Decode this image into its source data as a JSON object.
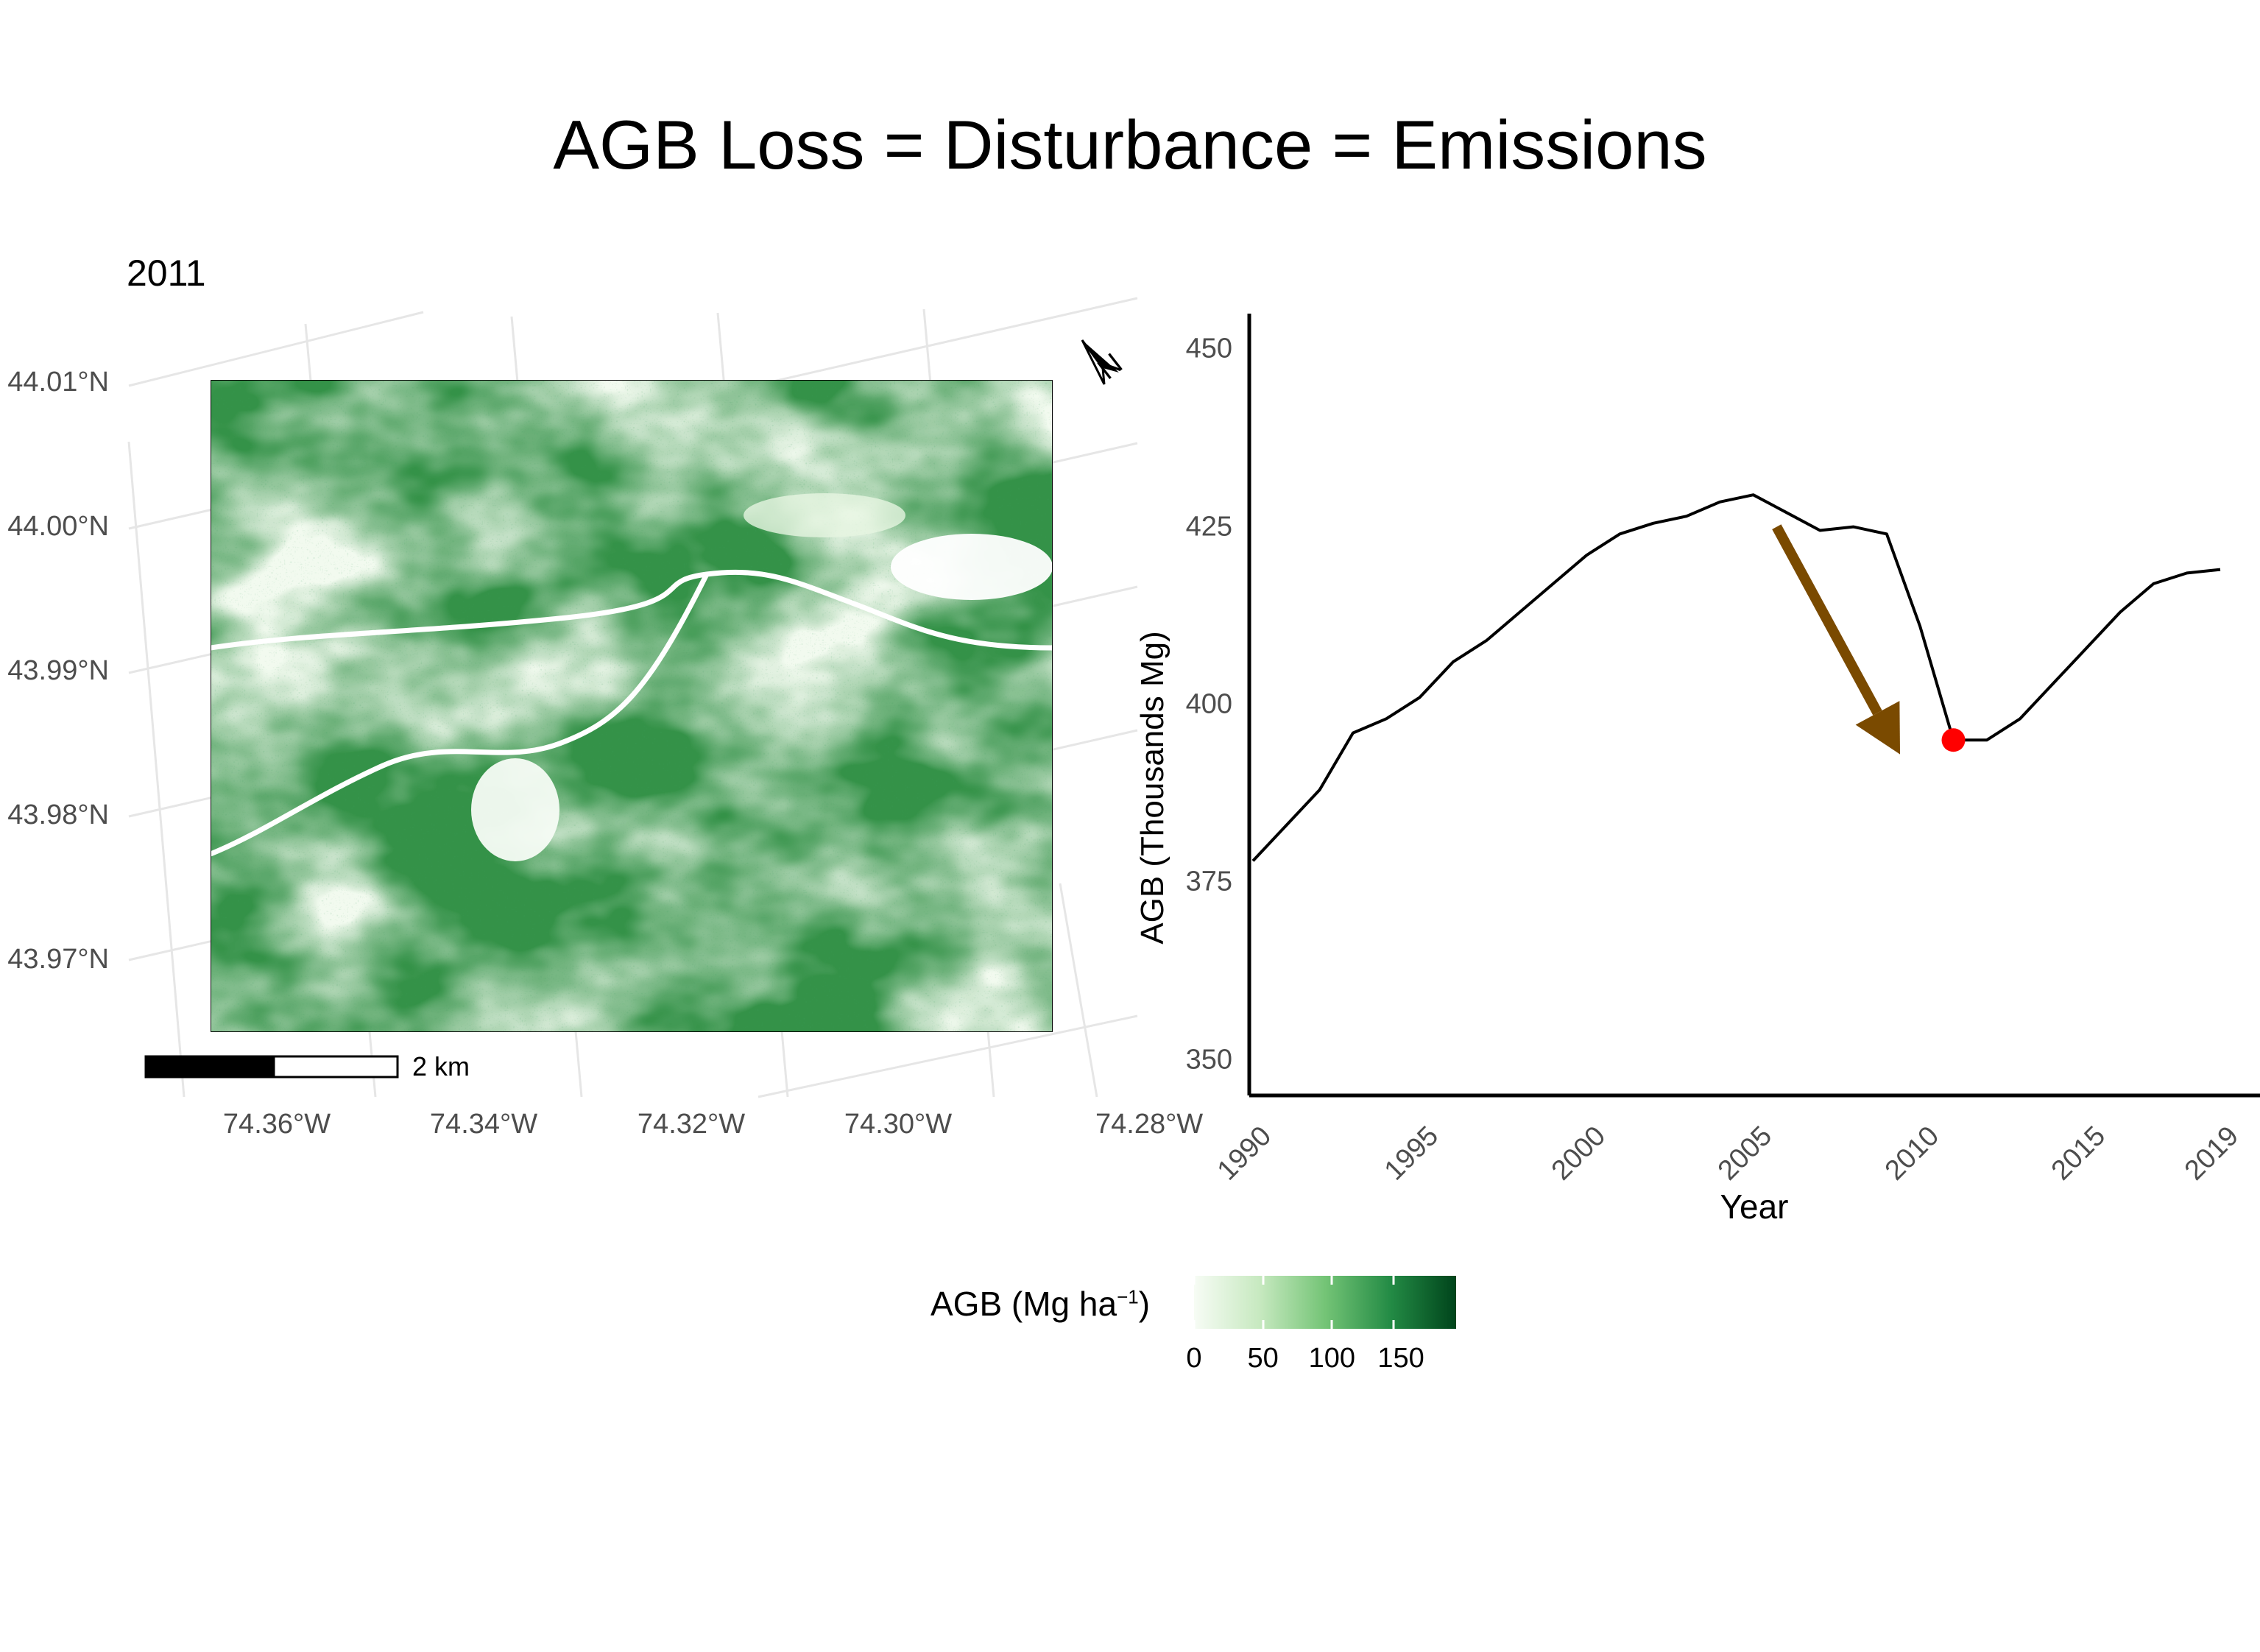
{
  "title": "AGB Loss = Disturbance = Emissions",
  "map": {
    "year_label": "2011",
    "lat_labels": [
      "44.01°N",
      "44.00°N",
      "43.99°N",
      "43.98°N",
      "43.97°N"
    ],
    "lon_labels": [
      "74.36°W",
      "74.34°W",
      "74.32°W",
      "74.30°W",
      "74.28°W"
    ],
    "scale_bar_label": "2 km",
    "north_arrow_letter": "N",
    "colors": {
      "low": "#f7fcf5",
      "mid": "#74c476",
      "high": "#00441b",
      "road": "#ffffff"
    }
  },
  "legend": {
    "title_main": "AGB (Mg ha",
    "title_sup": "−1",
    "title_close": ")",
    "ticks": [
      "0",
      "50",
      "100",
      "150"
    ],
    "range": [
      0,
      190
    ]
  },
  "chart_data": {
    "type": "line",
    "xlabel": "Year",
    "ylabel": "AGB (Thousands Mg)",
    "xlim": [
      1990,
      2019
    ],
    "ylim": [
      345,
      455
    ],
    "x_ticks": [
      "1990",
      "1995",
      "2000",
      "2005",
      "2010",
      "2015",
      "2019"
    ],
    "y_ticks": [
      "450",
      "425",
      "400",
      "375",
      "350"
    ],
    "series": [
      {
        "x": [
          1990,
          1991,
          1992,
          1993,
          1994,
          1995,
          1996,
          1997,
          1998,
          1999,
          2000,
          2001,
          2002,
          2003,
          2004,
          2005,
          2006,
          2007,
          2008,
          2009,
          2010,
          2011,
          2012,
          2013,
          2014,
          2015,
          2016,
          2017,
          2018,
          2019
        ],
        "y": [
          378,
          383,
          388,
          396,
          398,
          401,
          406,
          409,
          413,
          417,
          421,
          424,
          425.5,
          426.5,
          428.5,
          429.5,
          427,
          424.5,
          425,
          424,
          411,
          395,
          395,
          398,
          403,
          408,
          413,
          417,
          418.5,
          419
        ],
        "color": "#000000"
      }
    ],
    "highlight": {
      "x": 2011,
      "y": 395,
      "color": "#ff0000"
    },
    "arrow": {
      "from": [
        2005.7,
        425
      ],
      "to": [
        2009.4,
        393
      ],
      "color": "#7a4a00"
    }
  }
}
